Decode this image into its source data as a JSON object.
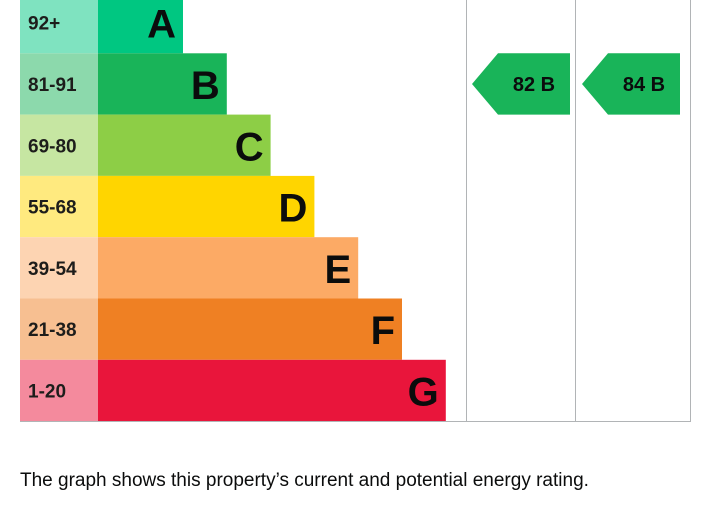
{
  "chart_data": {
    "type": "bar",
    "bands": [
      {
        "letter": "A",
        "range": "92+",
        "color": "#00c781",
        "label_bg": "#7fe3c0"
      },
      {
        "letter": "B",
        "range": "81-91",
        "color": "#19b459",
        "label_bg": "#8cd9ac"
      },
      {
        "letter": "C",
        "range": "69-80",
        "color": "#8dce46",
        "label_bg": "#c6e6a2"
      },
      {
        "letter": "D",
        "range": "55-68",
        "color": "#ffd500",
        "label_bg": "#ffea7f"
      },
      {
        "letter": "E",
        "range": "39-54",
        "color": "#fcaa65",
        "label_bg": "#fdd4b2"
      },
      {
        "letter": "F",
        "range": "21-38",
        "color": "#ef8023",
        "label_bg": "#f7bf91"
      },
      {
        "letter": "G",
        "range": "1-20",
        "color": "#e9153b",
        "label_bg": "#f48a9d"
      }
    ],
    "ratings": [
      {
        "text": "82 B",
        "score": 82,
        "band": "B",
        "color": "#19b459"
      },
      {
        "text": "84 B",
        "score": 84,
        "band": "B",
        "color": "#19b459"
      }
    ],
    "grid_line_color": "#b1b4b6"
  },
  "caption": "The graph shows this property’s current and potential energy rating."
}
